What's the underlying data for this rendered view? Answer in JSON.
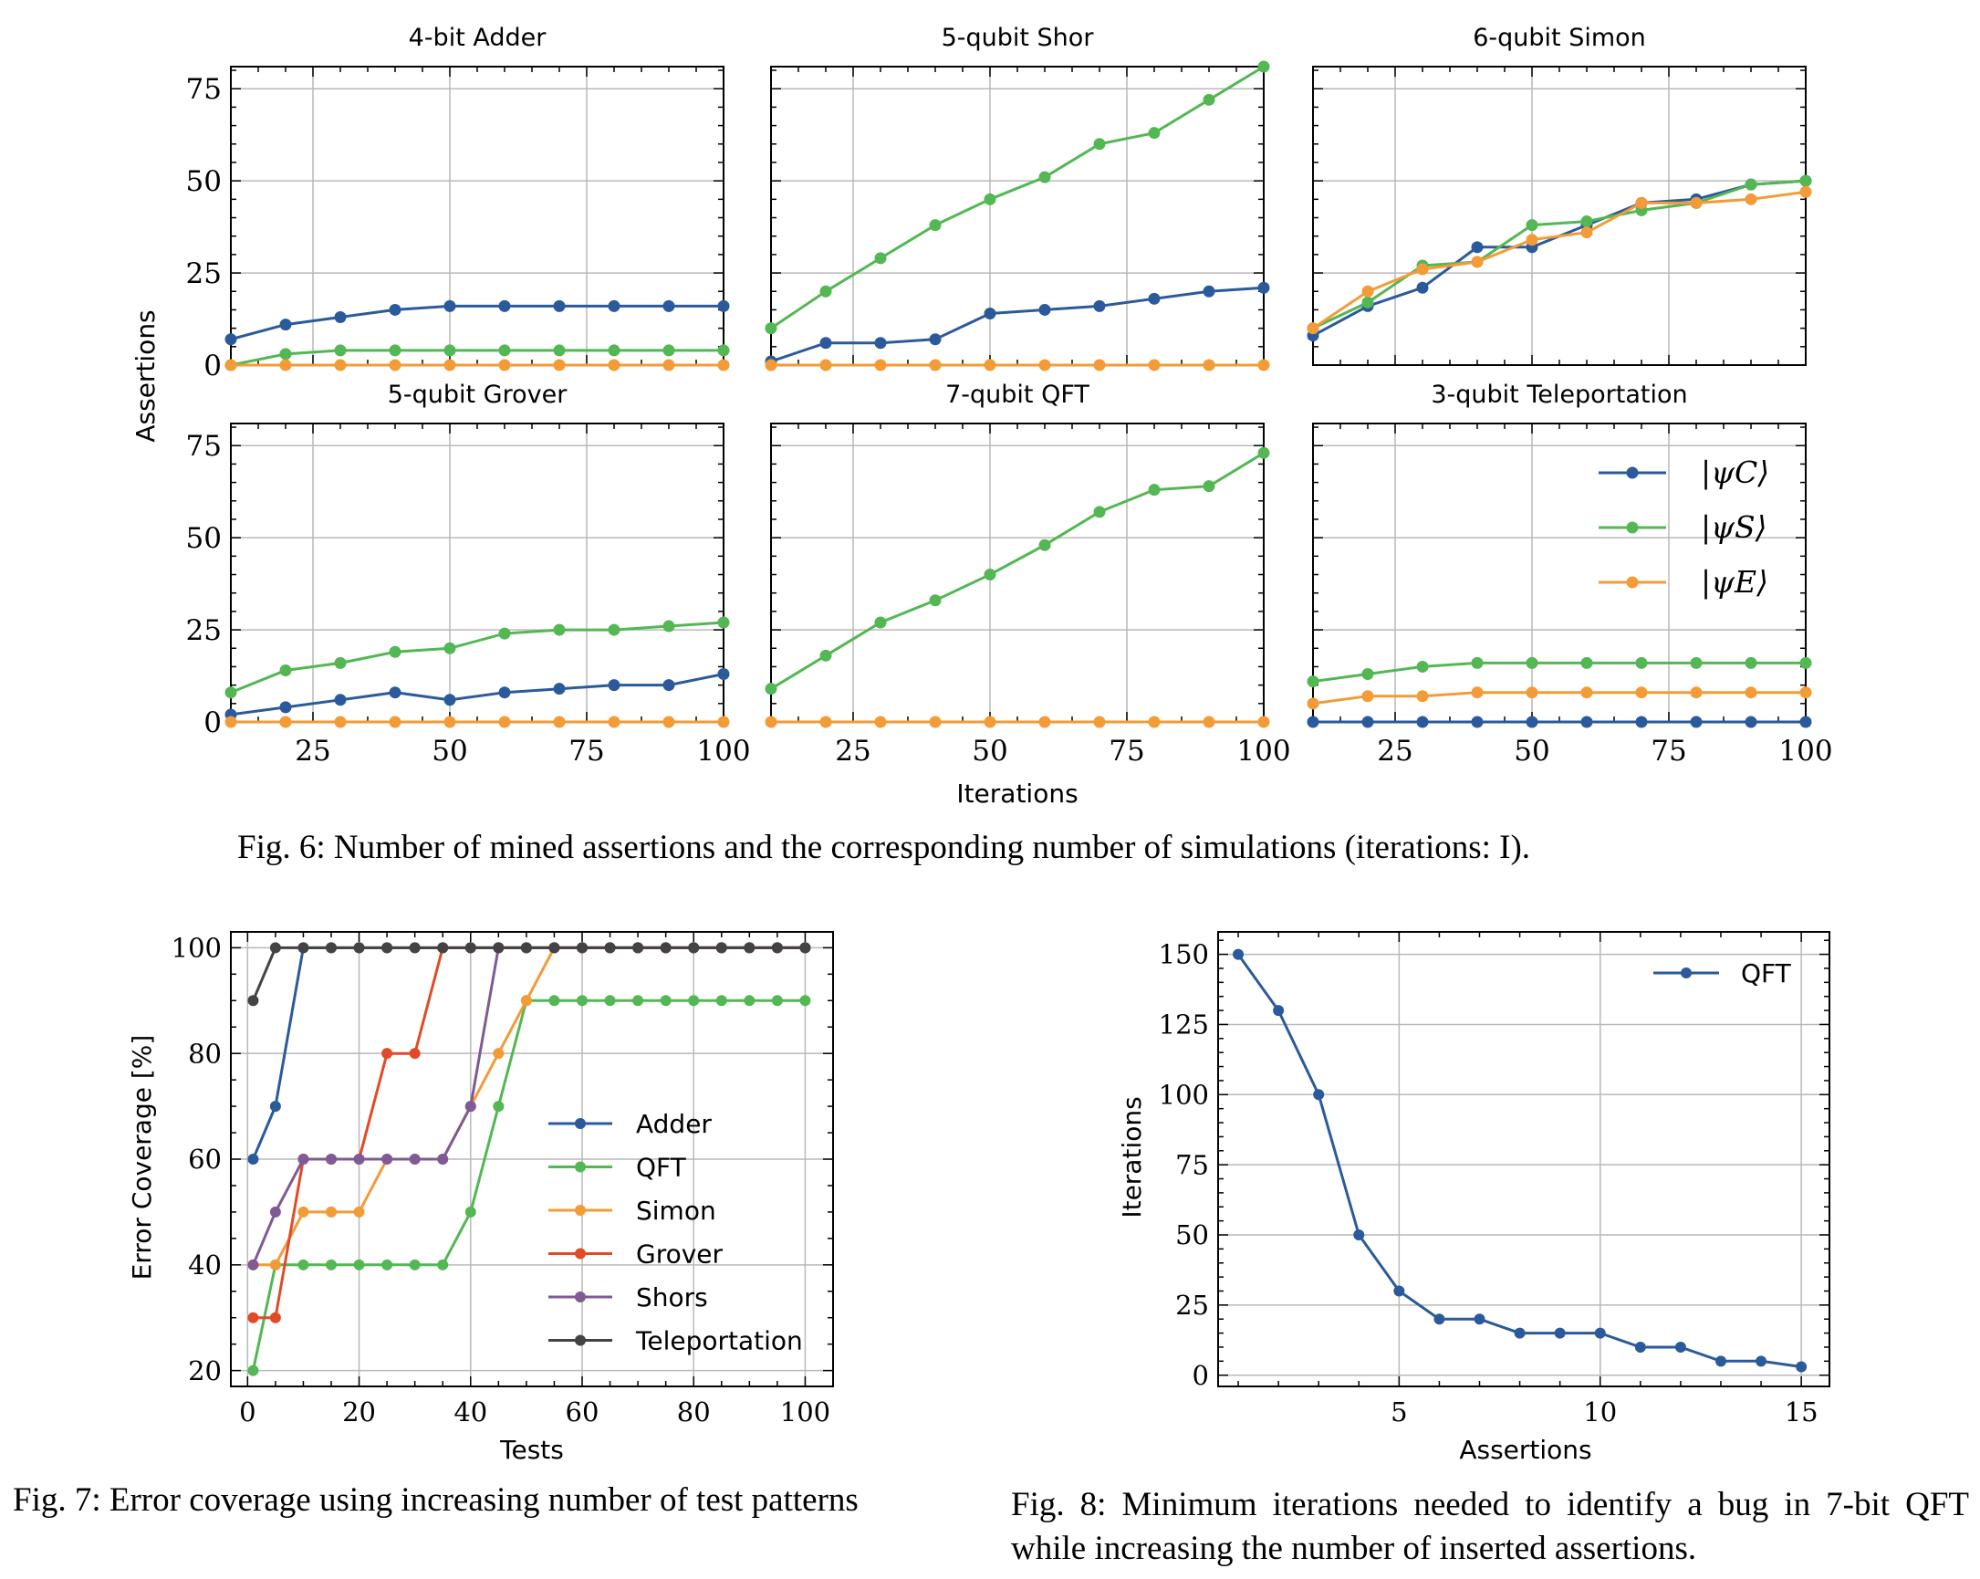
{
  "colors": {
    "C": "#2b5a9c",
    "S": "#53b754",
    "E": "#f39b37",
    "Adder": "#2b5a9c",
    "QFT": "#53b754",
    "Simon": "#f39b37",
    "Grover": "#e24a27",
    "Shors": "#7f5a94",
    "Teleportation": "#434343"
  },
  "fig6": {
    "caption": "Fig. 6: Number of mined assertions and the corresponding number of simulations (iterations: I).",
    "xlabel": "Iterations",
    "ylabel": "Assertions",
    "legend": [
      "|ψC⟩",
      "|ψS⟩",
      "|ψE⟩"
    ]
  },
  "fig7": {
    "caption": "Fig. 7: Error coverage using increasing number of test patterns"
  },
  "fig8": {
    "caption": "Fig. 8: Minimum iterations needed to identify a bug in 7-bit QFT while increasing the number of inserted assertions."
  },
  "chart_data": [
    {
      "type": "line",
      "id": "fig6",
      "x": [
        10,
        20,
        30,
        40,
        50,
        60,
        70,
        80,
        90,
        100
      ],
      "xlim": [
        10,
        100
      ],
      "ylim": [
        0,
        81
      ],
      "xticks": [
        25,
        50,
        75,
        100
      ],
      "yticks": [
        0,
        25,
        50,
        75
      ],
      "xlabel": "Iterations",
      "ylabel": "Assertions",
      "panels": [
        {
          "title": "4-bit Adder",
          "series": [
            {
              "key": "C",
              "name": "|ψC⟩",
              "values": [
                7,
                11,
                13,
                15,
                16,
                16,
                16,
                16,
                16,
                16
              ]
            },
            {
              "key": "S",
              "name": "|ψS⟩",
              "values": [
                0,
                3,
                4,
                4,
                4,
                4,
                4,
                4,
                4,
                4
              ]
            },
            {
              "key": "E",
              "name": "|ψE⟩",
              "values": [
                0,
                0,
                0,
                0,
                0,
                0,
                0,
                0,
                0,
                0
              ]
            }
          ]
        },
        {
          "title": "5-qubit Shor",
          "series": [
            {
              "key": "S",
              "name": "|ψS⟩",
              "values": [
                10,
                20,
                29,
                38,
                45,
                51,
                60,
                63,
                72,
                81
              ]
            },
            {
              "key": "C",
              "name": "|ψC⟩",
              "values": [
                1,
                6,
                6,
                7,
                14,
                15,
                16,
                18,
                20,
                21
              ]
            },
            {
              "key": "E",
              "name": "|ψE⟩",
              "values": [
                0,
                0,
                0,
                0,
                0,
                0,
                0,
                0,
                0,
                0
              ]
            }
          ]
        },
        {
          "title": "6-qubit Simon",
          "series": [
            {
              "key": "C",
              "name": "|ψC⟩",
              "values": [
                8,
                16,
                21,
                32,
                32,
                38,
                44,
                45,
                49,
                50
              ]
            },
            {
              "key": "S",
              "name": "|ψS⟩",
              "values": [
                10,
                17,
                27,
                28,
                38,
                39,
                42,
                44,
                49,
                50
              ]
            },
            {
              "key": "E",
              "name": "|ψE⟩",
              "values": [
                10,
                20,
                26,
                28,
                34,
                36,
                44,
                44,
                45,
                47
              ]
            }
          ]
        },
        {
          "title": "5-qubit Grover",
          "series": [
            {
              "key": "S",
              "name": "|ψS⟩",
              "values": [
                8,
                14,
                16,
                19,
                20,
                24,
                25,
                25,
                26,
                27
              ]
            },
            {
              "key": "C",
              "name": "|ψC⟩",
              "values": [
                2,
                4,
                6,
                8,
                6,
                8,
                9,
                10,
                10,
                13
              ]
            },
            {
              "key": "E",
              "name": "|ψE⟩",
              "values": [
                0,
                0,
                0,
                0,
                0,
                0,
                0,
                0,
                0,
                0
              ]
            }
          ]
        },
        {
          "title": "7-qubit QFT",
          "series": [
            {
              "key": "S",
              "name": "|ψS⟩",
              "values": [
                9,
                18,
                27,
                33,
                40,
                48,
                57,
                63,
                64,
                73
              ]
            },
            {
              "key": "E",
              "name": "|ψE⟩",
              "values": [
                0,
                0,
                0,
                0,
                0,
                0,
                0,
                0,
                0,
                0
              ]
            }
          ]
        },
        {
          "title": "3-qubit Teleportation",
          "series": [
            {
              "key": "S",
              "name": "|ψS⟩",
              "values": [
                11,
                13,
                15,
                16,
                16,
                16,
                16,
                16,
                16,
                16
              ]
            },
            {
              "key": "E",
              "name": "|ψE⟩",
              "values": [
                5,
                7,
                7,
                8,
                8,
                8,
                8,
                8,
                8,
                8
              ]
            },
            {
              "key": "C",
              "name": "|ψC⟩",
              "values": [
                0,
                0,
                0,
                0,
                0,
                0,
                0,
                0,
                0,
                0
              ]
            }
          ]
        }
      ]
    },
    {
      "type": "line",
      "id": "fig7",
      "xlim": [
        -3,
        105
      ],
      "ylim": [
        17,
        103
      ],
      "xticks": [
        0,
        20,
        40,
        60,
        80,
        100
      ],
      "yticks": [
        20,
        40,
        60,
        80,
        100
      ],
      "xlabel": "Tests",
      "ylabel": "Error Coverage [%]",
      "legend_position": "center-right",
      "series": [
        {
          "name": "Adder",
          "x": [
            1,
            5,
            10,
            15,
            20,
            25,
            30,
            35,
            40,
            45,
            50,
            55,
            60,
            65,
            70,
            75,
            80,
            85,
            90,
            95,
            100
          ],
          "values": [
            60,
            70,
            100,
            100,
            100,
            100,
            100,
            100,
            100,
            100,
            100,
            100,
            100,
            100,
            100,
            100,
            100,
            100,
            100,
            100,
            100
          ]
        },
        {
          "name": "QFT",
          "x": [
            1,
            5,
            10,
            15,
            20,
            25,
            30,
            35,
            40,
            45,
            50,
            55,
            60,
            65,
            70,
            75,
            80,
            85,
            90,
            95,
            100
          ],
          "values": [
            20,
            40,
            40,
            40,
            40,
            40,
            40,
            40,
            50,
            70,
            90,
            90,
            90,
            90,
            90,
            90,
            90,
            90,
            90,
            90,
            90
          ]
        },
        {
          "name": "Simon",
          "x": [
            1,
            5,
            10,
            15,
            20,
            25,
            30,
            35,
            40,
            45,
            50,
            55,
            60,
            65,
            70,
            75,
            80,
            85,
            90,
            95,
            100
          ],
          "values": [
            40,
            40,
            50,
            50,
            50,
            60,
            60,
            60,
            70,
            80,
            90,
            100,
            100,
            100,
            100,
            100,
            100,
            100,
            100,
            100,
            100
          ]
        },
        {
          "name": "Grover",
          "x": [
            1,
            5,
            10,
            15,
            20,
            25,
            30,
            35,
            40,
            45,
            50,
            55,
            60,
            65,
            70,
            75,
            80,
            85,
            90,
            95,
            100
          ],
          "values": [
            30,
            30,
            60,
            60,
            60,
            80,
            80,
            100,
            100,
            100,
            100,
            100,
            100,
            100,
            100,
            100,
            100,
            100,
            100,
            100,
            100
          ]
        },
        {
          "name": "Shors",
          "x": [
            1,
            5,
            10,
            15,
            20,
            25,
            30,
            35,
            40,
            45,
            50,
            55,
            60,
            65,
            70,
            75,
            80,
            85,
            90,
            95,
            100
          ],
          "values": [
            40,
            50,
            60,
            60,
            60,
            60,
            60,
            60,
            70,
            100,
            100,
            100,
            100,
            100,
            100,
            100,
            100,
            100,
            100,
            100,
            100
          ]
        },
        {
          "name": "Teleportation",
          "x": [
            1,
            5,
            10,
            15,
            20,
            25,
            30,
            35,
            40,
            45,
            50,
            55,
            60,
            65,
            70,
            75,
            80,
            85,
            90,
            95,
            100
          ],
          "values": [
            90,
            100,
            100,
            100,
            100,
            100,
            100,
            100,
            100,
            100,
            100,
            100,
            100,
            100,
            100,
            100,
            100,
            100,
            100,
            100,
            100
          ]
        }
      ]
    },
    {
      "type": "line",
      "id": "fig8",
      "xlim": [
        0.5,
        15.7
      ],
      "ylim": [
        -4,
        158
      ],
      "xticks": [
        5,
        10,
        15
      ],
      "yticks": [
        0,
        25,
        50,
        75,
        100,
        125,
        150
      ],
      "xlabel": "Assertions",
      "ylabel": "Iterations",
      "legend_position": "top-right",
      "series": [
        {
          "name": "QFT",
          "x": [
            1,
            2,
            3,
            4,
            5,
            6,
            7,
            8,
            9,
            10,
            11,
            12,
            13,
            14,
            15
          ],
          "values": [
            150,
            130,
            100,
            50,
            30,
            20,
            20,
            15,
            15,
            15,
            10,
            10,
            5,
            5,
            3
          ]
        }
      ]
    }
  ]
}
